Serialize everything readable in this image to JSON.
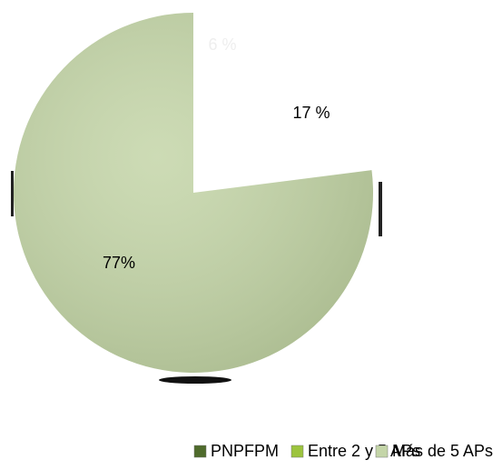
{
  "chart_data": {
    "type": "pie",
    "categories": [
      "PNPFPM",
      "Entre 2 y 5 APs",
      "Más de 5 APs"
    ],
    "values": [
      6,
      17,
      77
    ],
    "value_labels": [
      "6 %",
      "17 %",
      "77%"
    ],
    "colors": [
      "#4f6b2c",
      "#9cc43e",
      "#c4d5a8"
    ],
    "slice_colors": [
      "#ffffff",
      "#ffffff",
      "#c4d5a8"
    ],
    "label_colors": [
      "#eeeeee",
      "#000000",
      "#000000"
    ],
    "legend": "bottom"
  }
}
